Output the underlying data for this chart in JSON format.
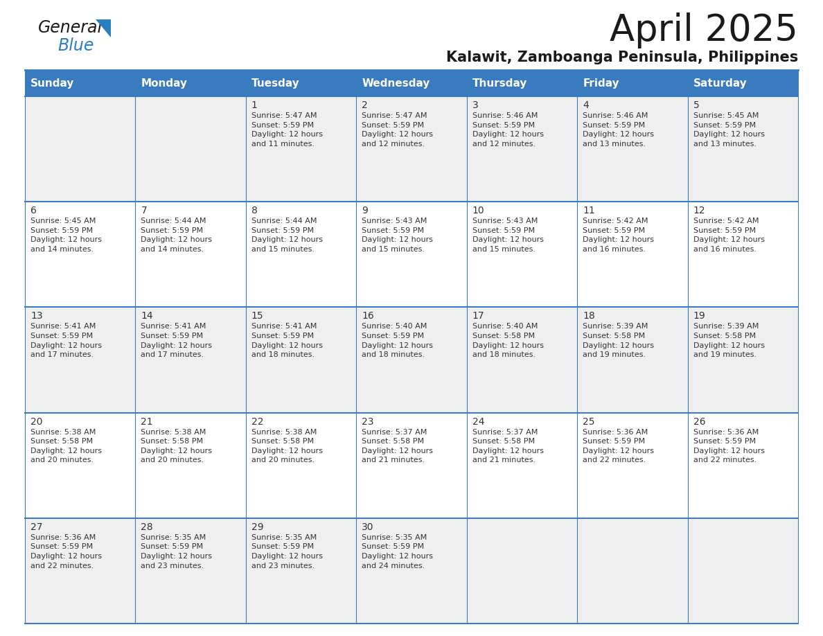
{
  "title": "April 2025",
  "subtitle": "Kalawit, Zamboanga Peninsula, Philippines",
  "header_bg": "#3a7bbf",
  "header_text": "#ffffff",
  "row_bg_odd": "#efefef",
  "row_bg_even": "#ffffff",
  "border_color": "#3a7bbf",
  "text_color": "#333333",
  "days_of_week": [
    "Sunday",
    "Monday",
    "Tuesday",
    "Wednesday",
    "Thursday",
    "Friday",
    "Saturday"
  ],
  "calendar_data": [
    [
      {
        "day": "",
        "info": ""
      },
      {
        "day": "",
        "info": ""
      },
      {
        "day": "1",
        "info": "Sunrise: 5:47 AM\nSunset: 5:59 PM\nDaylight: 12 hours\nand 11 minutes."
      },
      {
        "day": "2",
        "info": "Sunrise: 5:47 AM\nSunset: 5:59 PM\nDaylight: 12 hours\nand 12 minutes."
      },
      {
        "day": "3",
        "info": "Sunrise: 5:46 AM\nSunset: 5:59 PM\nDaylight: 12 hours\nand 12 minutes."
      },
      {
        "day": "4",
        "info": "Sunrise: 5:46 AM\nSunset: 5:59 PM\nDaylight: 12 hours\nand 13 minutes."
      },
      {
        "day": "5",
        "info": "Sunrise: 5:45 AM\nSunset: 5:59 PM\nDaylight: 12 hours\nand 13 minutes."
      }
    ],
    [
      {
        "day": "6",
        "info": "Sunrise: 5:45 AM\nSunset: 5:59 PM\nDaylight: 12 hours\nand 14 minutes."
      },
      {
        "day": "7",
        "info": "Sunrise: 5:44 AM\nSunset: 5:59 PM\nDaylight: 12 hours\nand 14 minutes."
      },
      {
        "day": "8",
        "info": "Sunrise: 5:44 AM\nSunset: 5:59 PM\nDaylight: 12 hours\nand 15 minutes."
      },
      {
        "day": "9",
        "info": "Sunrise: 5:43 AM\nSunset: 5:59 PM\nDaylight: 12 hours\nand 15 minutes."
      },
      {
        "day": "10",
        "info": "Sunrise: 5:43 AM\nSunset: 5:59 PM\nDaylight: 12 hours\nand 15 minutes."
      },
      {
        "day": "11",
        "info": "Sunrise: 5:42 AM\nSunset: 5:59 PM\nDaylight: 12 hours\nand 16 minutes."
      },
      {
        "day": "12",
        "info": "Sunrise: 5:42 AM\nSunset: 5:59 PM\nDaylight: 12 hours\nand 16 minutes."
      }
    ],
    [
      {
        "day": "13",
        "info": "Sunrise: 5:41 AM\nSunset: 5:59 PM\nDaylight: 12 hours\nand 17 minutes."
      },
      {
        "day": "14",
        "info": "Sunrise: 5:41 AM\nSunset: 5:59 PM\nDaylight: 12 hours\nand 17 minutes."
      },
      {
        "day": "15",
        "info": "Sunrise: 5:41 AM\nSunset: 5:59 PM\nDaylight: 12 hours\nand 18 minutes."
      },
      {
        "day": "16",
        "info": "Sunrise: 5:40 AM\nSunset: 5:59 PM\nDaylight: 12 hours\nand 18 minutes."
      },
      {
        "day": "17",
        "info": "Sunrise: 5:40 AM\nSunset: 5:58 PM\nDaylight: 12 hours\nand 18 minutes."
      },
      {
        "day": "18",
        "info": "Sunrise: 5:39 AM\nSunset: 5:58 PM\nDaylight: 12 hours\nand 19 minutes."
      },
      {
        "day": "19",
        "info": "Sunrise: 5:39 AM\nSunset: 5:58 PM\nDaylight: 12 hours\nand 19 minutes."
      }
    ],
    [
      {
        "day": "20",
        "info": "Sunrise: 5:38 AM\nSunset: 5:58 PM\nDaylight: 12 hours\nand 20 minutes."
      },
      {
        "day": "21",
        "info": "Sunrise: 5:38 AM\nSunset: 5:58 PM\nDaylight: 12 hours\nand 20 minutes."
      },
      {
        "day": "22",
        "info": "Sunrise: 5:38 AM\nSunset: 5:58 PM\nDaylight: 12 hours\nand 20 minutes."
      },
      {
        "day": "23",
        "info": "Sunrise: 5:37 AM\nSunset: 5:58 PM\nDaylight: 12 hours\nand 21 minutes."
      },
      {
        "day": "24",
        "info": "Sunrise: 5:37 AM\nSunset: 5:58 PM\nDaylight: 12 hours\nand 21 minutes."
      },
      {
        "day": "25",
        "info": "Sunrise: 5:36 AM\nSunset: 5:59 PM\nDaylight: 12 hours\nand 22 minutes."
      },
      {
        "day": "26",
        "info": "Sunrise: 5:36 AM\nSunset: 5:59 PM\nDaylight: 12 hours\nand 22 minutes."
      }
    ],
    [
      {
        "day": "27",
        "info": "Sunrise: 5:36 AM\nSunset: 5:59 PM\nDaylight: 12 hours\nand 22 minutes."
      },
      {
        "day": "28",
        "info": "Sunrise: 5:35 AM\nSunset: 5:59 PM\nDaylight: 12 hours\nand 23 minutes."
      },
      {
        "day": "29",
        "info": "Sunrise: 5:35 AM\nSunset: 5:59 PM\nDaylight: 12 hours\nand 23 minutes."
      },
      {
        "day": "30",
        "info": "Sunrise: 5:35 AM\nSunset: 5:59 PM\nDaylight: 12 hours\nand 24 minutes."
      },
      {
        "day": "",
        "info": ""
      },
      {
        "day": "",
        "info": ""
      },
      {
        "day": "",
        "info": ""
      }
    ]
  ],
  "logo_general_color": "#1a1a1a",
  "logo_blue_color": "#2b7fc1",
  "logo_triangle_color": "#2b7fc1",
  "title_fontsize": 38,
  "subtitle_fontsize": 15,
  "header_fontsize": 11,
  "day_num_fontsize": 10,
  "info_fontsize": 8
}
